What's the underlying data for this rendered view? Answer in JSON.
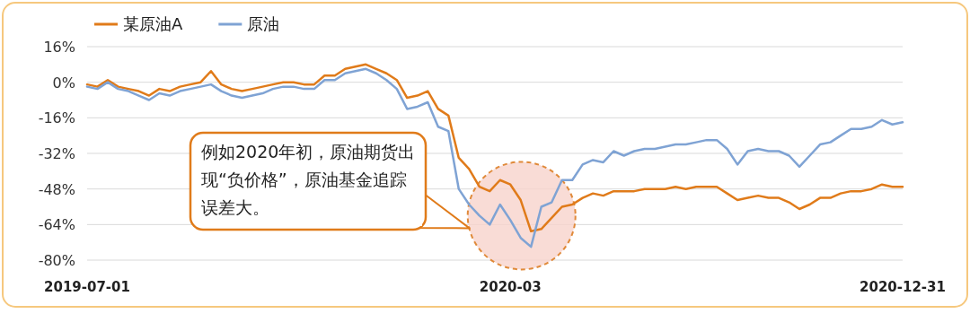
{
  "chart_data": {
    "type": "line",
    "categories": [
      "2019-07-01",
      null,
      null,
      null,
      null,
      null,
      null,
      null,
      null,
      null,
      null,
      null,
      null,
      null,
      null,
      null,
      null,
      null,
      null,
      null,
      null,
      null,
      null,
      null,
      null,
      null,
      null,
      null,
      null,
      null,
      null,
      null,
      null,
      null,
      null,
      null,
      null,
      null,
      null,
      null,
      null,
      "2020-03",
      null,
      null,
      null,
      null,
      null,
      null,
      null,
      null,
      null,
      null,
      null,
      null,
      null,
      null,
      null,
      null,
      null,
      null,
      null,
      null,
      null,
      null,
      null,
      null,
      null,
      null,
      null,
      null,
      null,
      null,
      null,
      null,
      null,
      null,
      null,
      null,
      null,
      "2020-12-31"
    ],
    "series": [
      {
        "name": "某原油A",
        "color": "#e07b1a",
        "values": [
          -1,
          -2,
          1,
          -2,
          -3,
          -4,
          -6,
          -3,
          -4,
          -2,
          -1,
          0,
          5,
          -1,
          -3,
          -4,
          -3,
          -2,
          -1,
          0,
          0,
          -1,
          -1,
          3,
          3,
          6,
          7,
          8,
          6,
          4,
          1,
          -7,
          -6,
          -4,
          -12,
          -15,
          -34,
          -39,
          -47,
          -49,
          -44,
          -46,
          -53,
          -67,
          -66,
          -61,
          -56,
          -55,
          -52,
          -50,
          -51,
          -49,
          -49,
          -49,
          -48,
          -48,
          -48,
          -47,
          -48,
          -47,
          -47,
          -47,
          -50,
          -53,
          -52,
          -51,
          -52,
          -52,
          -54,
          -57,
          -55,
          -52,
          -52,
          -50,
          -49,
          -49,
          -48,
          -46,
          -47,
          -47
        ]
      },
      {
        "name": "原油",
        "color": "#7fa3d4",
        "values": [
          -2,
          -3,
          0,
          -3,
          -4,
          -6,
          -8,
          -5,
          -6,
          -4,
          -3,
          -2,
          -1,
          -4,
          -6,
          -7,
          -6,
          -5,
          -3,
          -2,
          -2,
          -3,
          -3,
          1,
          1,
          4,
          5,
          6,
          4,
          1,
          -3,
          -12,
          -11,
          -9,
          -20,
          -22,
          -48,
          -55,
          -60,
          -64,
          -55,
          -62,
          -70,
          -74,
          -56,
          -54,
          -44,
          -44,
          -37,
          -35,
          -36,
          -31,
          -33,
          -31,
          -30,
          -30,
          -29,
          -28,
          -28,
          -27,
          -26,
          -26,
          -30,
          -37,
          -31,
          -30,
          -31,
          -31,
          -33,
          -38,
          -33,
          -28,
          -27,
          -24,
          -21,
          -21,
          -20,
          -17,
          -19,
          -18
        ]
      }
    ],
    "ylim": [
      -80,
      16
    ],
    "yticks": [
      {
        "value": 16,
        "label": "16%"
      },
      {
        "value": 0,
        "label": "0%"
      },
      {
        "value": -16,
        "label": "-16%"
      },
      {
        "value": -32,
        "label": "-32%"
      },
      {
        "value": -48,
        "label": "-48%"
      },
      {
        "value": -64,
        "label": "-64%"
      },
      {
        "value": -80,
        "label": "-80%"
      }
    ],
    "grid": "y",
    "legend": "top left",
    "marker": "none",
    "line_style": "solid",
    "annotations": [
      "例如2020年初，原油期货出现“负价格”，原油基金追踪误差大。"
    ]
  }
}
